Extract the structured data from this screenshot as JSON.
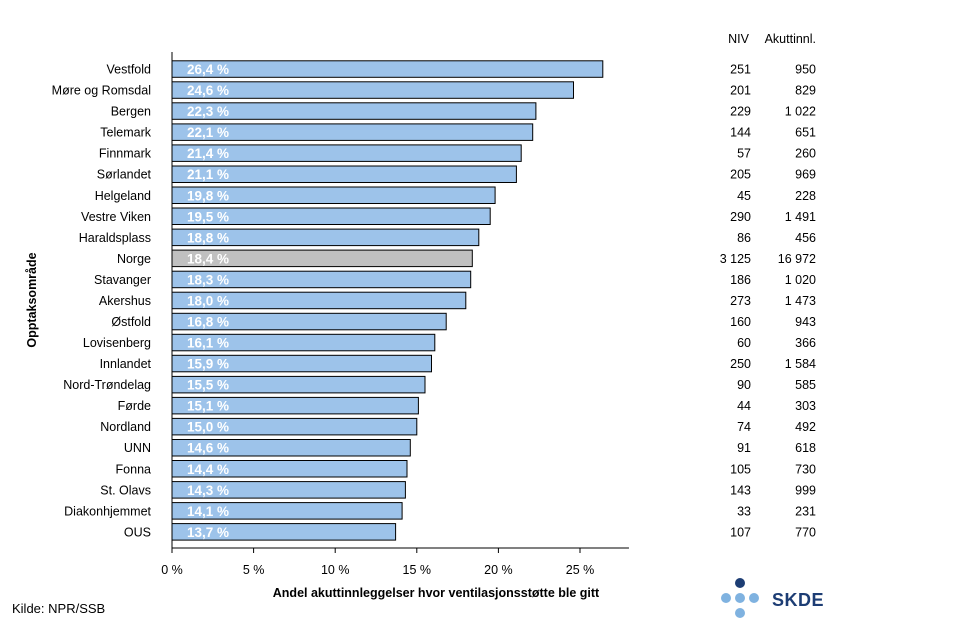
{
  "chart_data": {
    "type": "bar",
    "orientation": "horizontal",
    "xlabel": "Andel akuttinnleggelser hvor ventilasjonsstøtte ble gitt",
    "ylabel": "Opptaksområde",
    "xlim": [
      0,
      28
    ],
    "xticks": [
      0,
      5,
      10,
      15,
      20,
      25
    ],
    "xtick_labels": [
      "0 %",
      "5 %",
      "10 %",
      "15 %",
      "20 %",
      "25 %"
    ],
    "grid": false,
    "bar_color": "#9dc3ea",
    "highlight_color": "#c0c0c0",
    "label_color": "#ffffff",
    "table_headers": [
      "NIV",
      "Akuttinnl."
    ],
    "rows": [
      {
        "category": "Vestfold",
        "value": 26.4,
        "label": "26,4 %",
        "niv": "251",
        "akutt": "950"
      },
      {
        "category": "Møre og Romsdal",
        "value": 24.6,
        "label": "24,6 %",
        "niv": "201",
        "akutt": "829"
      },
      {
        "category": "Bergen",
        "value": 22.3,
        "label": "22,3 %",
        "niv": "229",
        "akutt": "1 022"
      },
      {
        "category": "Telemark",
        "value": 22.1,
        "label": "22,1 %",
        "niv": "144",
        "akutt": "651"
      },
      {
        "category": "Finnmark",
        "value": 21.4,
        "label": "21,4 %",
        "niv": "57",
        "akutt": "260"
      },
      {
        "category": "Sørlandet",
        "value": 21.1,
        "label": "21,1 %",
        "niv": "205",
        "akutt": "969"
      },
      {
        "category": "Helgeland",
        "value": 19.8,
        "label": "19,8 %",
        "niv": "45",
        "akutt": "228"
      },
      {
        "category": "Vestre Viken",
        "value": 19.5,
        "label": "19,5 %",
        "niv": "290",
        "akutt": "1 491"
      },
      {
        "category": "Haraldsplass",
        "value": 18.8,
        "label": "18,8 %",
        "niv": "86",
        "akutt": "456"
      },
      {
        "category": "Norge",
        "value": 18.4,
        "label": "18,4 %",
        "niv": "3 125",
        "akutt": "16 972",
        "highlight": true
      },
      {
        "category": "Stavanger",
        "value": 18.3,
        "label": "18,3 %",
        "niv": "186",
        "akutt": "1 020"
      },
      {
        "category": "Akershus",
        "value": 18.0,
        "label": "18,0 %",
        "niv": "273",
        "akutt": "1 473"
      },
      {
        "category": "Østfold",
        "value": 16.8,
        "label": "16,8 %",
        "niv": "160",
        "akutt": "943"
      },
      {
        "category": "Lovisenberg",
        "value": 16.1,
        "label": "16,1 %",
        "niv": "60",
        "akutt": "366"
      },
      {
        "category": "Innlandet",
        "value": 15.9,
        "label": "15,9 %",
        "niv": "250",
        "akutt": "1 584"
      },
      {
        "category": "Nord-Trøndelag",
        "value": 15.5,
        "label": "15,5 %",
        "niv": "90",
        "akutt": "585"
      },
      {
        "category": "Førde",
        "value": 15.1,
        "label": "15,1 %",
        "niv": "44",
        "akutt": "303"
      },
      {
        "category": "Nordland",
        "value": 15.0,
        "label": "15,0 %",
        "niv": "74",
        "akutt": "492"
      },
      {
        "category": "UNN",
        "value": 14.6,
        "label": "14,6 %",
        "niv": "91",
        "akutt": "618"
      },
      {
        "category": "Fonna",
        "value": 14.4,
        "label": "14,4 %",
        "niv": "105",
        "akutt": "730"
      },
      {
        "category": "St. Olavs",
        "value": 14.3,
        "label": "14,3 %",
        "niv": "143",
        "akutt": "999"
      },
      {
        "category": "Diakonhjemmet",
        "value": 14.1,
        "label": "14,1 %",
        "niv": "33",
        "akutt": "231"
      },
      {
        "category": "OUS",
        "value": 13.7,
        "label": "13,7 %",
        "niv": "107",
        "akutt": "770"
      }
    ]
  },
  "footer": {
    "source": "Kilde: NPR/SSB"
  },
  "logo": {
    "text": "SKDE",
    "icon": "dots-logo-icon",
    "dark_color": "#1d3d74",
    "light_color": "#7fb2e0"
  }
}
